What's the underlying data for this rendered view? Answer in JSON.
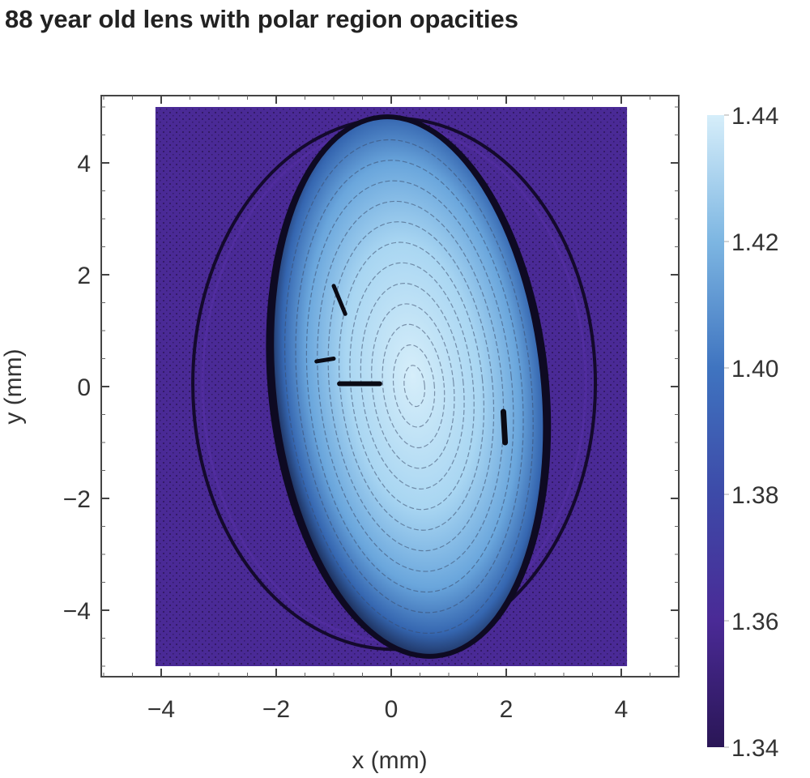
{
  "chart_data": {
    "type": "heatmap",
    "title": "88 year old lens with polar region opacities",
    "xlabel": "x (mm)",
    "ylabel": "y (mm)",
    "xlim": [
      -5,
      5
    ],
    "ylim": [
      -5.2,
      5.2
    ],
    "data_extent": {
      "x": [
        -4.1,
        4.1
      ],
      "y": [
        -5,
        5
      ]
    },
    "xticks": [
      -4,
      -2,
      0,
      2,
      4
    ],
    "xtick_labels": [
      "−4",
      "−2",
      "0",
      "2",
      "4"
    ],
    "yticks": [
      4,
      2,
      0,
      -2,
      -4
    ],
    "ytick_labels": [
      "4",
      "2",
      "0",
      "−2",
      "−4"
    ],
    "colorbar": {
      "range": [
        1.34,
        1.44
      ],
      "ticks": [
        1.44,
        1.42,
        1.4,
        1.38,
        1.36,
        1.34
      ],
      "tick_labels": [
        "1.44",
        "1.42",
        "1.40",
        "1.38",
        "1.36",
        "1.34"
      ],
      "colors": [
        "#2a1656",
        "#4a2a96",
        "#3d4aa8",
        "#3f74c0",
        "#7db6e2",
        "#d6eefa"
      ]
    },
    "features": {
      "background_value": 1.35,
      "lens_center_value": 1.44,
      "lens_center": [
        0.3,
        0
      ],
      "lens_semi_axes": [
        2.3,
        4.8
      ],
      "outer_ring_semi_axes": [
        3.5,
        4.75
      ]
    },
    "grid": false
  }
}
